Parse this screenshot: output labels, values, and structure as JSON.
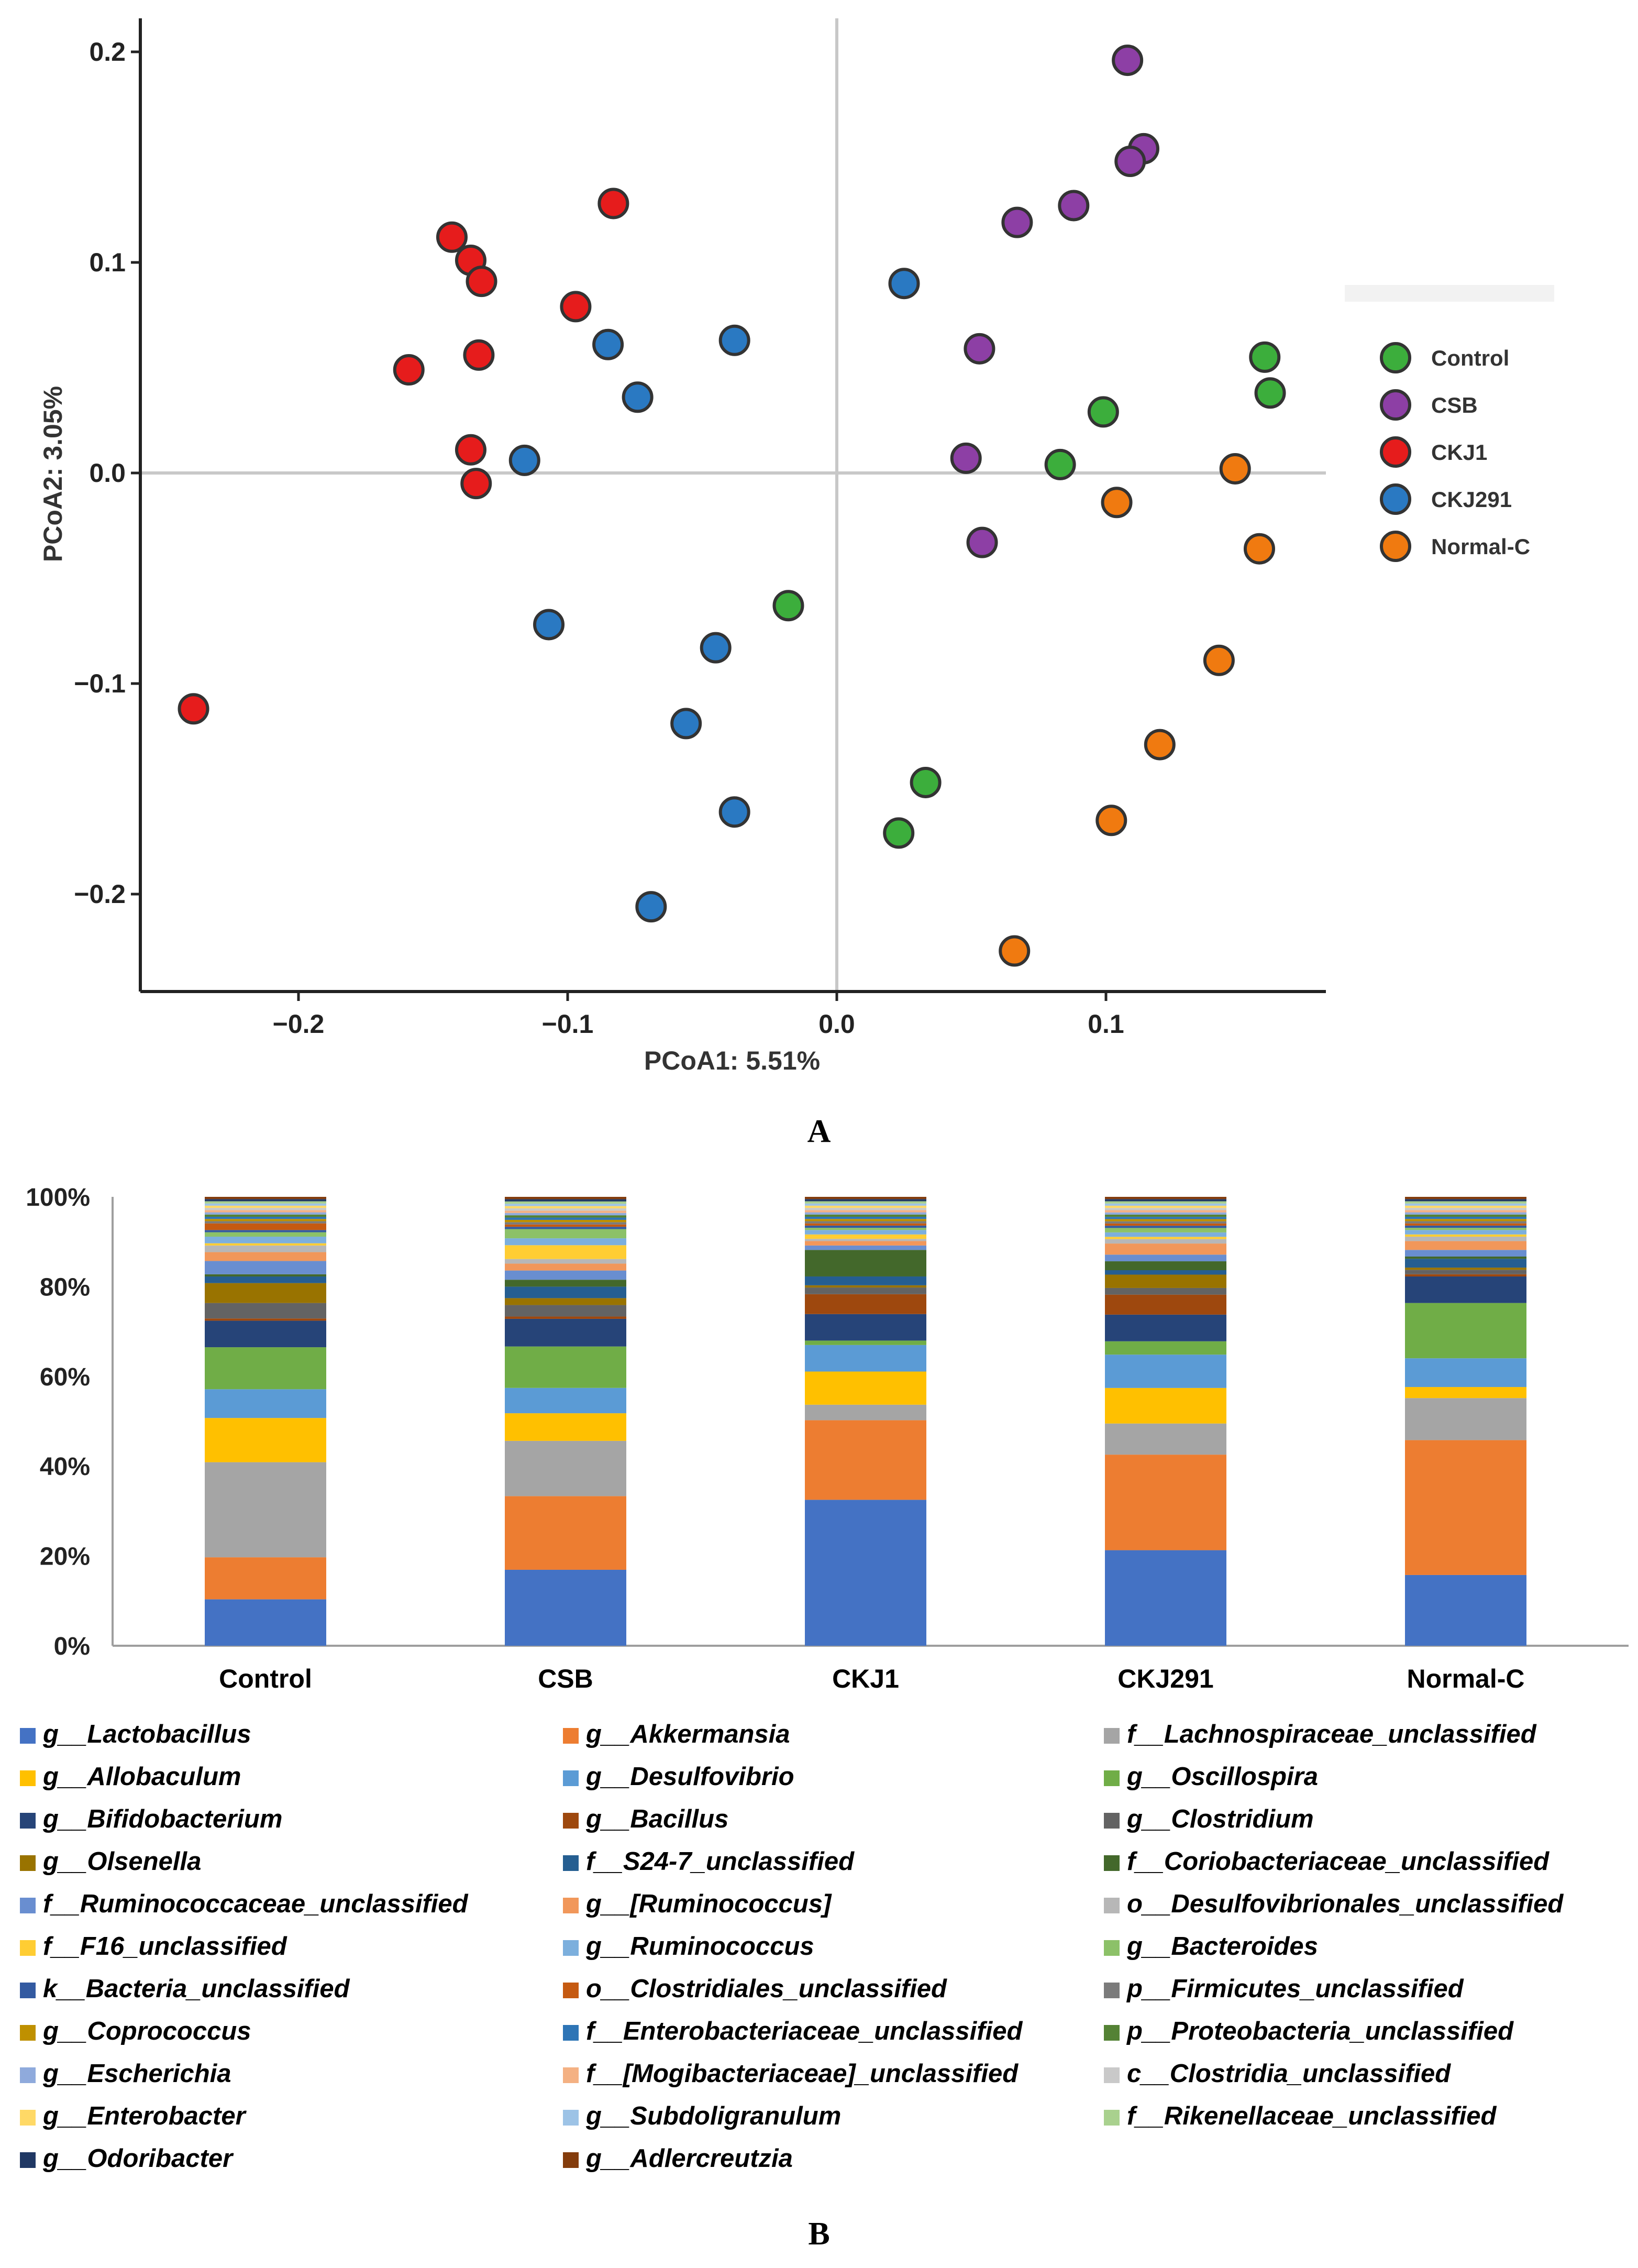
{
  "panel_a_label": "A",
  "panel_b_label": "B",
  "chart_data": [
    {
      "type": "scatter",
      "title": "",
      "xlabel": "PCoA1: 5.51%",
      "ylabel": "PCoA2: 3.05%",
      "xlim": [
        -0.26,
        0.18
      ],
      "ylim": [
        -0.245,
        0.215
      ],
      "x_ticks": [
        -0.2,
        -0.1,
        0.0,
        0.1
      ],
      "x_tick_labels": [
        "−0.2",
        "−0.1",
        "0.0",
        "0.1"
      ],
      "y_ticks": [
        0.2,
        0.1,
        0.0,
        -0.1,
        -0.2
      ],
      "y_tick_labels": [
        "0.2",
        "0.1",
        "0.0",
        "−0.1",
        "−0.2"
      ],
      "reference_lines": {
        "x": 0,
        "y": 0
      },
      "grid": false,
      "legend_position": "right",
      "series": [
        {
          "name": "Control",
          "color": "#3cae3c",
          "points": [
            [
              0.159,
              0.055
            ],
            [
              0.161,
              0.038
            ],
            [
              0.099,
              0.029
            ],
            [
              0.083,
              0.004
            ],
            [
              -0.018,
              -0.063
            ],
            [
              0.033,
              -0.147
            ],
            [
              0.023,
              -0.171
            ]
          ]
        },
        {
          "name": "CSB",
          "color": "#8d3fa5",
          "points": [
            [
              0.108,
              0.196
            ],
            [
              0.114,
              0.154
            ],
            [
              0.109,
              0.148
            ],
            [
              0.088,
              0.127
            ],
            [
              0.067,
              0.119
            ],
            [
              0.053,
              0.059
            ],
            [
              0.048,
              0.007
            ],
            [
              0.054,
              -0.033
            ]
          ]
        },
        {
          "name": "CKJ1",
          "color": "#e61c1c",
          "points": [
            [
              -0.083,
              0.128
            ],
            [
              -0.143,
              0.112
            ],
            [
              -0.136,
              0.101
            ],
            [
              -0.132,
              0.091
            ],
            [
              -0.097,
              0.079
            ],
            [
              -0.133,
              0.056
            ],
            [
              -0.159,
              0.049
            ],
            [
              -0.136,
              0.011
            ],
            [
              -0.134,
              -0.005
            ],
            [
              -0.239,
              -0.112
            ]
          ]
        },
        {
          "name": "CKJ291",
          "color": "#2a79c2",
          "points": [
            [
              0.025,
              0.09
            ],
            [
              -0.085,
              0.061
            ],
            [
              -0.038,
              0.063
            ],
            [
              -0.074,
              0.036
            ],
            [
              -0.116,
              0.006
            ],
            [
              -0.107,
              -0.072
            ],
            [
              -0.045,
              -0.083
            ],
            [
              -0.056,
              -0.119
            ],
            [
              -0.038,
              -0.161
            ],
            [
              -0.069,
              -0.206
            ]
          ]
        },
        {
          "name": "Normal-C",
          "color": "#f07a10",
          "points": [
            [
              0.148,
              0.002
            ],
            [
              0.104,
              -0.014
            ],
            [
              0.157,
              -0.036
            ],
            [
              0.142,
              -0.089
            ],
            [
              0.12,
              -0.129
            ],
            [
              0.102,
              -0.165
            ],
            [
              0.066,
              -0.227
            ]
          ]
        }
      ]
    },
    {
      "type": "bar",
      "stacked": true,
      "title": "",
      "xlabel": "",
      "ylabel": "",
      "ylim": [
        0,
        100
      ],
      "y_ticks": [
        0,
        20,
        40,
        60,
        80,
        100
      ],
      "y_tick_labels": [
        "0%",
        "20%",
        "40%",
        "60%",
        "80%",
        "100%"
      ],
      "categories": [
        "Control",
        "CSB",
        "CKJ1",
        "CKJ291",
        "Normal-C"
      ],
      "legend_position": "bottom",
      "series": [
        {
          "name": "g__Lactobacillus",
          "color": "#4472c4",
          "values": [
            10.5,
            16.5,
            33,
            21.5,
            16
          ]
        },
        {
          "name": "g__Akkermansia",
          "color": "#ed7d31",
          "values": [
            9.5,
            16,
            18,
            21.5,
            30.5
          ]
        },
        {
          "name": "f__Lachnospiraceae_unclassified",
          "color": "#a5a5a5",
          "values": [
            21.5,
            12,
            3.5,
            7,
            9.5
          ]
        },
        {
          "name": "g__Allobaculum",
          "color": "#ffc000",
          "values": [
            10,
            6,
            7.5,
            8,
            2.5
          ]
        },
        {
          "name": "g__Desulfovibrio",
          "color": "#5b9bd5",
          "values": [
            6.5,
            5.5,
            6,
            7.5,
            6.5
          ]
        },
        {
          "name": "g__Oscillospira",
          "color": "#70ad47",
          "values": [
            9.5,
            9,
            1,
            3,
            12.5
          ]
        },
        {
          "name": "g__Bifidobacterium",
          "color": "#264478",
          "values": [
            6,
            6,
            6,
            6,
            6
          ]
        },
        {
          "name": "g__Bacillus",
          "color": "#9e480e",
          "values": [
            0.5,
            0.5,
            4.5,
            4.5,
            0.5
          ]
        },
        {
          "name": "g__Clostridium",
          "color": "#636363",
          "values": [
            3.5,
            2.5,
            1.5,
            1.5,
            1
          ]
        },
        {
          "name": "g__Olsenella",
          "color": "#997300",
          "values": [
            4.5,
            1.5,
            0.5,
            3,
            0.5
          ]
        },
        {
          "name": "f__S24-7_unclassified",
          "color": "#255e91",
          "values": [
            1.5,
            2.5,
            2,
            1,
            2
          ]
        },
        {
          "name": "f__Coriobacteriaceae_unclassified",
          "color": "#43682b",
          "values": [
            0.5,
            1.5,
            6,
            2,
            0.5
          ]
        },
        {
          "name": "f__Ruminococcaceae_unclassified",
          "color": "#698ed0",
          "values": [
            3,
            2,
            1,
            1.5,
            1.5
          ]
        },
        {
          "name": "g__[Ruminococcus]",
          "color": "#f1975a",
          "values": [
            2,
            1.5,
            1,
            2.5,
            2
          ]
        },
        {
          "name": "o__Desulfovibrionales_unclassified",
          "color": "#b7b7b7",
          "values": [
            1.5,
            1,
            0.5,
            1,
            1
          ]
        },
        {
          "name": "f__F16_unclassified",
          "color": "#ffcd33",
          "values": [
            0.5,
            3,
            1,
            0.5,
            0.5
          ]
        },
        {
          "name": "g__Ruminococcus",
          "color": "#7cafdd",
          "values": [
            1.5,
            1.5,
            1,
            1,
            1
          ]
        },
        {
          "name": "g__Bacteroides",
          "color": "#8cc168",
          "values": [
            1,
            2,
            0.5,
            1,
            0.5
          ]
        },
        {
          "name": "k__Bacteria_unclassified",
          "color": "#335aa1",
          "values": [
            0.5,
            0.5,
            0.5,
            0.5,
            0.5
          ]
        },
        {
          "name": "o__Clostridiales_unclassified",
          "color": "#c55a11",
          "values": [
            1.5,
            0.5,
            0.5,
            0.5,
            0.5
          ]
        },
        {
          "name": "p__Firmicutes_unclassified",
          "color": "#7b7b7b",
          "values": [
            0.5,
            0.5,
            0.5,
            0.5,
            0.5
          ]
        },
        {
          "name": "g__Coprococcus",
          "color": "#bf9000",
          "values": [
            0.5,
            0.5,
            0.5,
            0.5,
            0.5
          ]
        },
        {
          "name": "f__Enterobacteriaceae_unclassified",
          "color": "#2e75b6",
          "values": [
            0.5,
            0.5,
            0.5,
            0.5,
            0.5
          ]
        },
        {
          "name": "p__Proteobacteria_unclassified",
          "color": "#548235",
          "values": [
            0.5,
            0.5,
            0.5,
            0.5,
            0.5
          ]
        },
        {
          "name": "g__Escherichia",
          "color": "#8faadc",
          "values": [
            0.5,
            0.5,
            0.5,
            0.5,
            0.5
          ]
        },
        {
          "name": "f__[Mogibacteriaceae]_unclassified",
          "color": "#f4b183",
          "values": [
            0.5,
            0.5,
            0.5,
            0.5,
            0.5
          ]
        },
        {
          "name": "c__Clostridia_unclassified",
          "color": "#c9c9c9",
          "values": [
            0.5,
            0.5,
            0.5,
            0.5,
            0.5
          ]
        },
        {
          "name": "g__Enterobacter",
          "color": "#ffd966",
          "values": [
            0.5,
            0.5,
            0.5,
            0.5,
            0.5
          ]
        },
        {
          "name": "g__Subdoligranulum",
          "color": "#9dc3e6",
          "values": [
            0.5,
            0.5,
            0.5,
            0.5,
            0.5
          ]
        },
        {
          "name": "f__Rikenellaceae_unclassified",
          "color": "#a9d18e",
          "values": [
            0.5,
            0.5,
            0.5,
            0.5,
            0.5
          ]
        },
        {
          "name": "g__Odoribacter",
          "color": "#203864",
          "values": [
            0.5,
            0.5,
            0.5,
            0.5,
            0.5
          ]
        },
        {
          "name": "g__Adlercreutzia",
          "color": "#843c0c",
          "values": [
            0.5,
            0.5,
            0.5,
            0.5,
            0.5
          ]
        }
      ]
    }
  ]
}
